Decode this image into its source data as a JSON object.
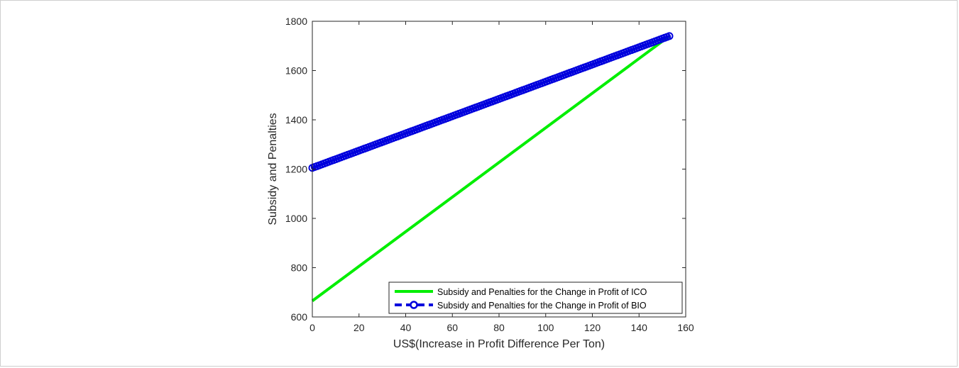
{
  "chart_data": {
    "type": "line",
    "xlabel": "US$(Increase in Profit Difference Per Ton)",
    "ylabel": "Subsidy and Penalties",
    "xlim": [
      0,
      160
    ],
    "ylim": [
      600,
      1800
    ],
    "xticks": [
      0,
      20,
      40,
      60,
      80,
      100,
      120,
      140,
      160
    ],
    "yticks": [
      600,
      800,
      1000,
      1200,
      1400,
      1600,
      1800
    ],
    "grid": false,
    "legend_position": "bottom-right",
    "series": [
      {
        "name": "Subsidy and Penalties for the Change in Profit of ICO",
        "color": "#00ee00",
        "style": "solid",
        "marker": "none",
        "x": [
          0,
          153
        ],
        "y": [
          665,
          1740
        ]
      },
      {
        "name": "Subsidy and Penalties for the Change in Profit of BIO",
        "color": "#0000dd",
        "style": "dashed",
        "marker": "circle",
        "x": [
          0,
          153
        ],
        "y": [
          1205,
          1740
        ]
      }
    ]
  }
}
